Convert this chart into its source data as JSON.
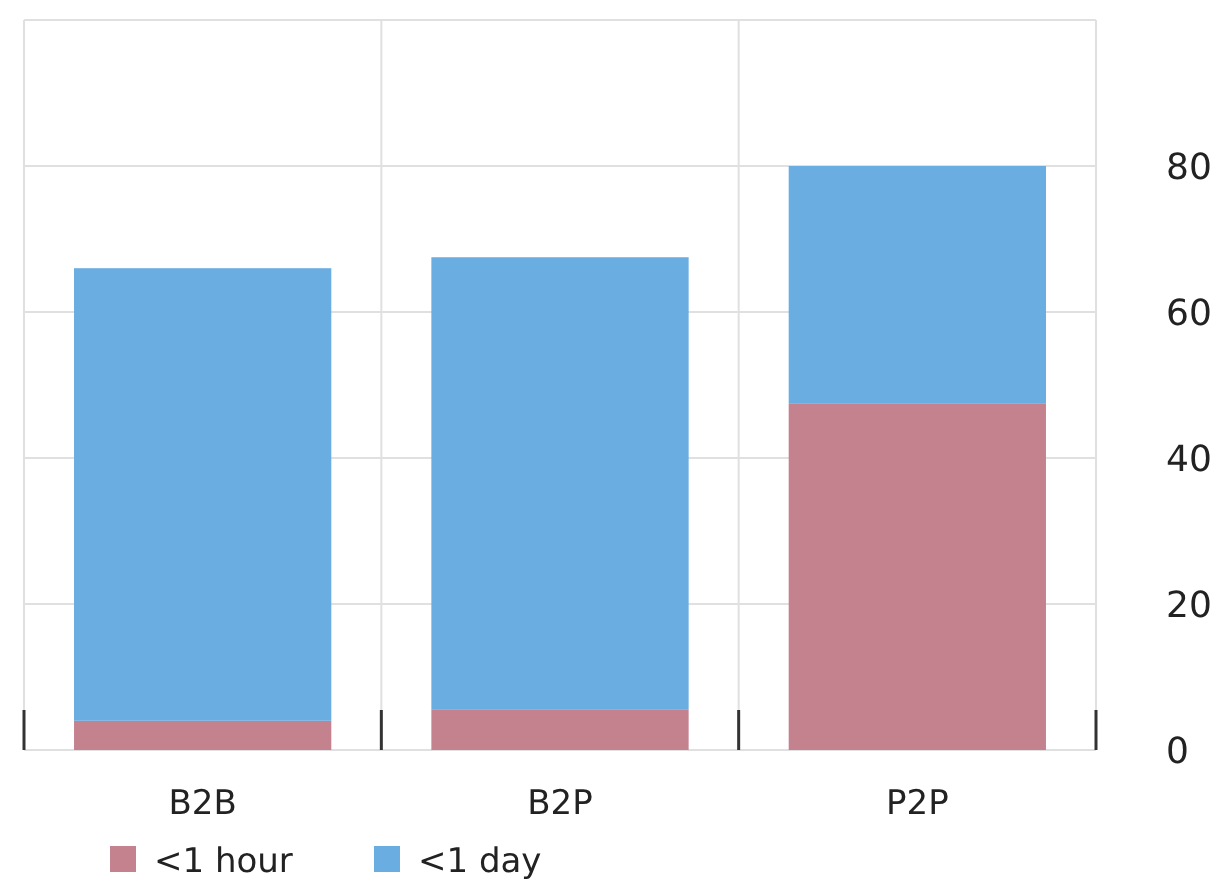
{
  "chart_data": {
    "type": "bar",
    "stacked": true,
    "categories": [
      "B2B",
      "B2P",
      "P2P"
    ],
    "series": [
      {
        "name": "<1 hour",
        "color": "#c4828f",
        "values": [
          4,
          5.5,
          47.5
        ]
      },
      {
        "name": "<1 day",
        "color": "#6aade0",
        "values": [
          62,
          62,
          32.5
        ]
      }
    ],
    "ylim": [
      0,
      100
    ],
    "yticks": [
      0,
      20,
      40,
      60,
      80
    ],
    "grid": true,
    "legend": "bottom"
  }
}
